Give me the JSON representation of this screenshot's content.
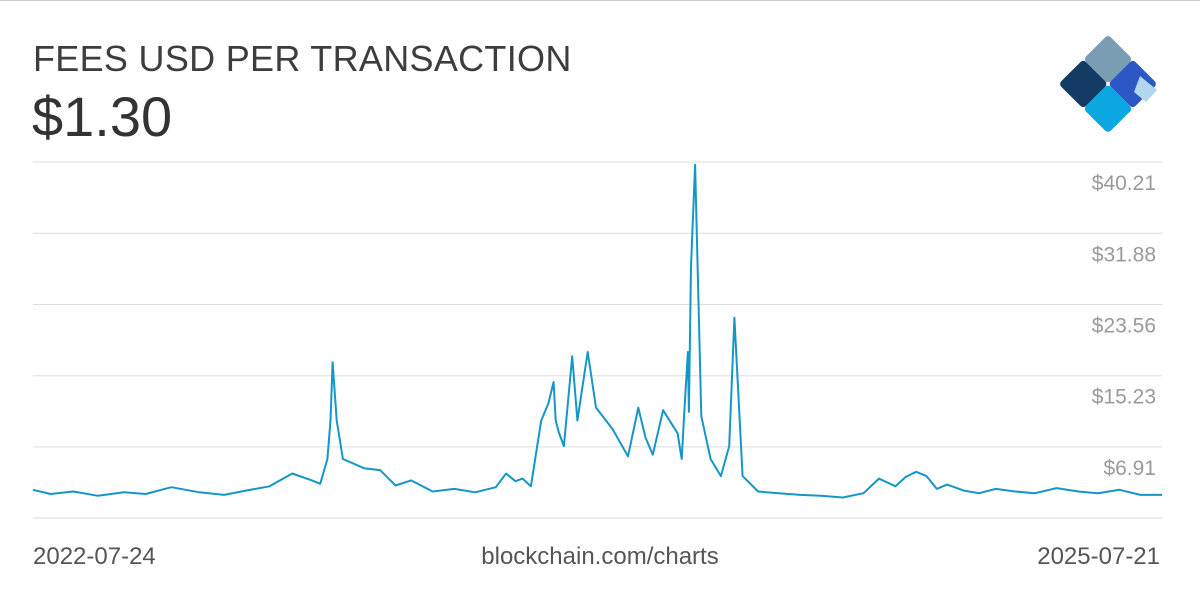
{
  "header": {
    "title": "FEES USD PER TRANSACTION",
    "current_value": "$1.30"
  },
  "footer": {
    "start_date": "2022-07-24",
    "source": "blockchain.com/charts",
    "end_date": "2025-07-21"
  },
  "logo": {
    "icon": "blockchain-logo-icon",
    "colors": [
      "#7a9db3",
      "#133b63",
      "#2d57c5",
      "#0aa7e3",
      "#b2d6ee"
    ]
  },
  "chart_data": {
    "type": "line",
    "title": "FEES USD PER TRANSACTION",
    "xlabel": "",
    "ylabel": "",
    "x_range": [
      "2022-07-24",
      "2025-07-21"
    ],
    "ylim": [
      -1.4,
      40.21
    ],
    "y_ticks": [
      6.91,
      15.23,
      23.56,
      31.88,
      40.21
    ],
    "y_tick_labels": [
      "$6.91",
      "$15.23",
      "$23.56",
      "$31.88",
      "$40.21"
    ],
    "grid": true,
    "legend": "none",
    "line_color": "#1596c8",
    "series": [
      {
        "x": [
          "2022-07-24",
          "2022-08-10",
          "2022-09-01",
          "2022-09-25",
          "2022-10-20",
          "2022-11-10",
          "2022-12-05",
          "2023-01-01",
          "2023-01-25",
          "2023-02-15",
          "2023-03-10",
          "2023-04-01",
          "2023-04-20",
          "2023-04-28",
          "2023-05-05",
          "2023-05-08",
          "2023-05-10",
          "2023-05-14",
          "2023-05-20",
          "2023-06-10",
          "2023-06-25",
          "2023-07-10",
          "2023-07-25",
          "2023-08-15",
          "2023-09-05",
          "2023-09-25",
          "2023-10-15",
          "2023-10-25",
          "2023-11-03",
          "2023-11-10",
          "2023-11-18",
          "2023-11-28",
          "2023-12-05",
          "2023-12-10",
          "2023-12-12",
          "2023-12-15",
          "2023-12-20",
          "2023-12-28",
          "2024-01-02",
          "2024-01-12",
          "2024-01-20",
          "2024-02-05",
          "2024-02-20",
          "2024-03-01",
          "2024-03-08",
          "2024-03-15",
          "2024-03-25",
          "2024-04-08",
          "2024-04-12",
          "2024-04-15",
          "2024-04-18",
          "2024-04-19",
          "2024-04-21",
          "2024-04-25",
          "2024-05-01",
          "2024-05-10",
          "2024-05-20",
          "2024-05-28",
          "2024-06-02",
          "2024-06-10",
          "2024-06-25",
          "2024-07-15",
          "2024-08-05",
          "2024-08-25",
          "2024-09-15",
          "2024-10-05",
          "2024-10-20",
          "2024-11-05",
          "2024-11-15",
          "2024-11-25",
          "2024-12-05",
          "2024-12-15",
          "2024-12-25",
          "2025-01-10",
          "2025-01-25",
          "2025-02-10",
          "2025-03-01",
          "2025-03-20",
          "2025-04-10",
          "2025-05-01",
          "2025-05-20",
          "2025-06-10",
          "2025-06-30",
          "2025-07-21"
        ],
        "values": [
          1.9,
          1.4,
          1.7,
          1.2,
          1.6,
          1.4,
          2.2,
          1.6,
          1.3,
          1.8,
          2.3,
          3.8,
          3.0,
          2.6,
          5.5,
          10.0,
          16.8,
          10.0,
          5.5,
          4.4,
          4.2,
          2.4,
          3.0,
          1.7,
          2.0,
          1.6,
          2.2,
          3.8,
          2.9,
          3.2,
          2.3,
          10.0,
          12.0,
          14.5,
          10.0,
          8.6,
          7.0,
          17.5,
          10.0,
          18.0,
          11.5,
          9.0,
          5.8,
          11.5,
          8.0,
          6.0,
          11.2,
          8.5,
          5.5,
          12.0,
          18.0,
          11.0,
          28.0,
          39.9,
          10.5,
          5.5,
          3.5,
          7.0,
          22.0,
          3.5,
          1.7,
          1.5,
          1.3,
          1.2,
          1.0,
          1.5,
          3.2,
          2.3,
          3.4,
          4.0,
          3.5,
          2.0,
          2.5,
          1.8,
          1.5,
          2.0,
          1.7,
          1.5,
          2.1,
          1.7,
          1.5,
          1.9,
          1.3,
          1.3
        ]
      }
    ]
  }
}
